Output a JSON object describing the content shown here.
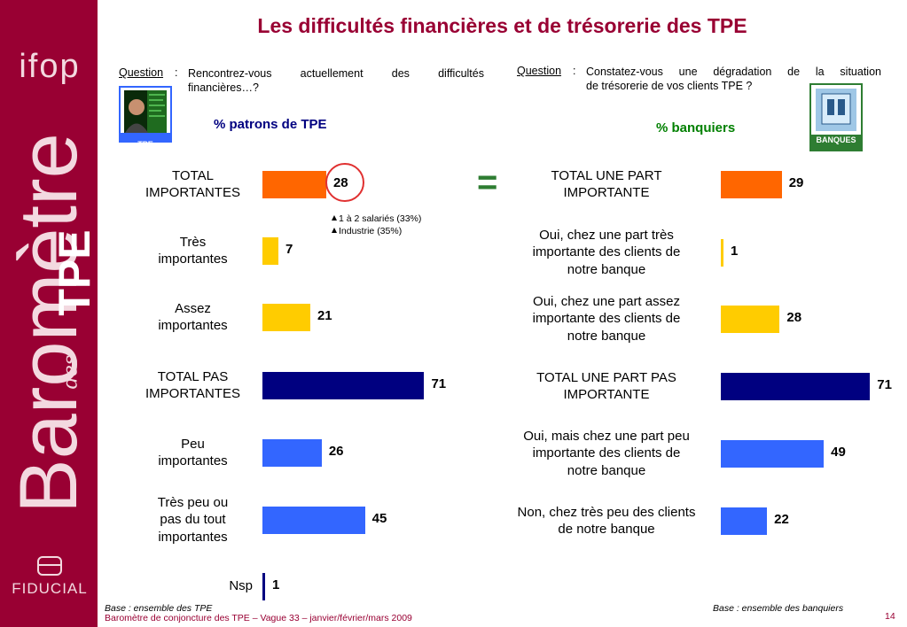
{
  "sidebar": {
    "logo_text": "ifop",
    "brand_word": "Baromètre",
    "brand_des": "des",
    "brand_tpe": "TPE",
    "company": "FIDUCIAL"
  },
  "title": "Les difficultés financières et de trésorerie des TPE",
  "left_panel": {
    "question_label": "Question",
    "question_colon": ":",
    "question_line1": "Rencontrez-vous actuellement des difficultés",
    "question_line2": "financières…?",
    "icon_caption": "TPE",
    "subtitle": "% patrons de TPE",
    "notes": [
      "1 à 2 salariés (33%)",
      "Industrie (35%)"
    ],
    "base": "Base : ensemble des TPE"
  },
  "right_panel": {
    "question_label": "Question",
    "question_colon": ":",
    "question_line1": "Constatez-vous une dégradation de la situation",
    "question_line2": "de trésorerie de vos clients TPE ?",
    "icon_caption": "BANQUES",
    "subtitle": "% banquiers",
    "base": "Base : ensemble des banquiers"
  },
  "equals_sign": "=",
  "footer": "Baromètre de conjoncture des TPE – Vague 33 – janvier/février/mars 2009",
  "page_number": "14",
  "colors": {
    "brand": "#990033",
    "orange": "#ff6600",
    "yellow": "#ffcc00",
    "navy": "#000080",
    "blue": "#3366ff",
    "left_subtitle": "#000080",
    "right_subtitle": "#008000"
  },
  "chart_data": [
    {
      "type": "bar",
      "orientation": "horizontal",
      "title": "% patrons de TPE",
      "categories": [
        "TOTAL IMPORTANTES",
        "Très importantes",
        "Assez importantes",
        "TOTAL PAS IMPORTANTES",
        "Peu importantes",
        "Très peu ou pas du tout importantes",
        "Nsp"
      ],
      "label_lines": [
        [
          "TOTAL",
          "IMPORTANTES"
        ],
        [
          "Très",
          "importantes"
        ],
        [
          "Assez",
          "importantes"
        ],
        [
          "TOTAL PAS",
          "IMPORTANTES"
        ],
        [
          "Peu",
          "importantes"
        ],
        [
          "Très peu ou",
          "pas du tout",
          "importantes"
        ],
        [
          "Nsp"
        ]
      ],
      "values": [
        28,
        7,
        21,
        71,
        26,
        45,
        1
      ],
      "bar_colors": [
        "#ff6600",
        "#ffcc00",
        "#ffcc00",
        "#000080",
        "#3366ff",
        "#3366ff",
        "#000080"
      ],
      "highlighted_value": 28
    },
    {
      "type": "bar",
      "orientation": "horizontal",
      "title": "% banquiers",
      "categories": [
        "TOTAL UNE PART IMPORTANTE",
        "Oui, chez une part très importante des clients de notre banque",
        "Oui, chez une part assez importante des clients de notre banque",
        "TOTAL UNE PART PAS IMPORTANTE",
        "Oui, mais chez une part peu importante des clients de notre banque",
        "Non, chez très peu des clients de notre banque"
      ],
      "label_lines": [
        [
          "TOTAL UNE PART",
          "IMPORTANTE"
        ],
        [
          "Oui, chez une part très",
          "importante des clients de",
          "notre banque"
        ],
        [
          "Oui, chez une part assez",
          "importante des clients de",
          "notre banque"
        ],
        [
          "TOTAL UNE PART PAS",
          "IMPORTANTE"
        ],
        [
          "Oui, mais chez une part peu",
          "importante des clients de",
          "notre banque"
        ],
        [
          "Non, chez très peu des clients",
          "de notre banque"
        ]
      ],
      "values": [
        29,
        1,
        28,
        71,
        49,
        22
      ],
      "bar_colors": [
        "#ff6600",
        "#ffcc00",
        "#ffcc00",
        "#000080",
        "#3366ff",
        "#3366ff"
      ]
    }
  ]
}
